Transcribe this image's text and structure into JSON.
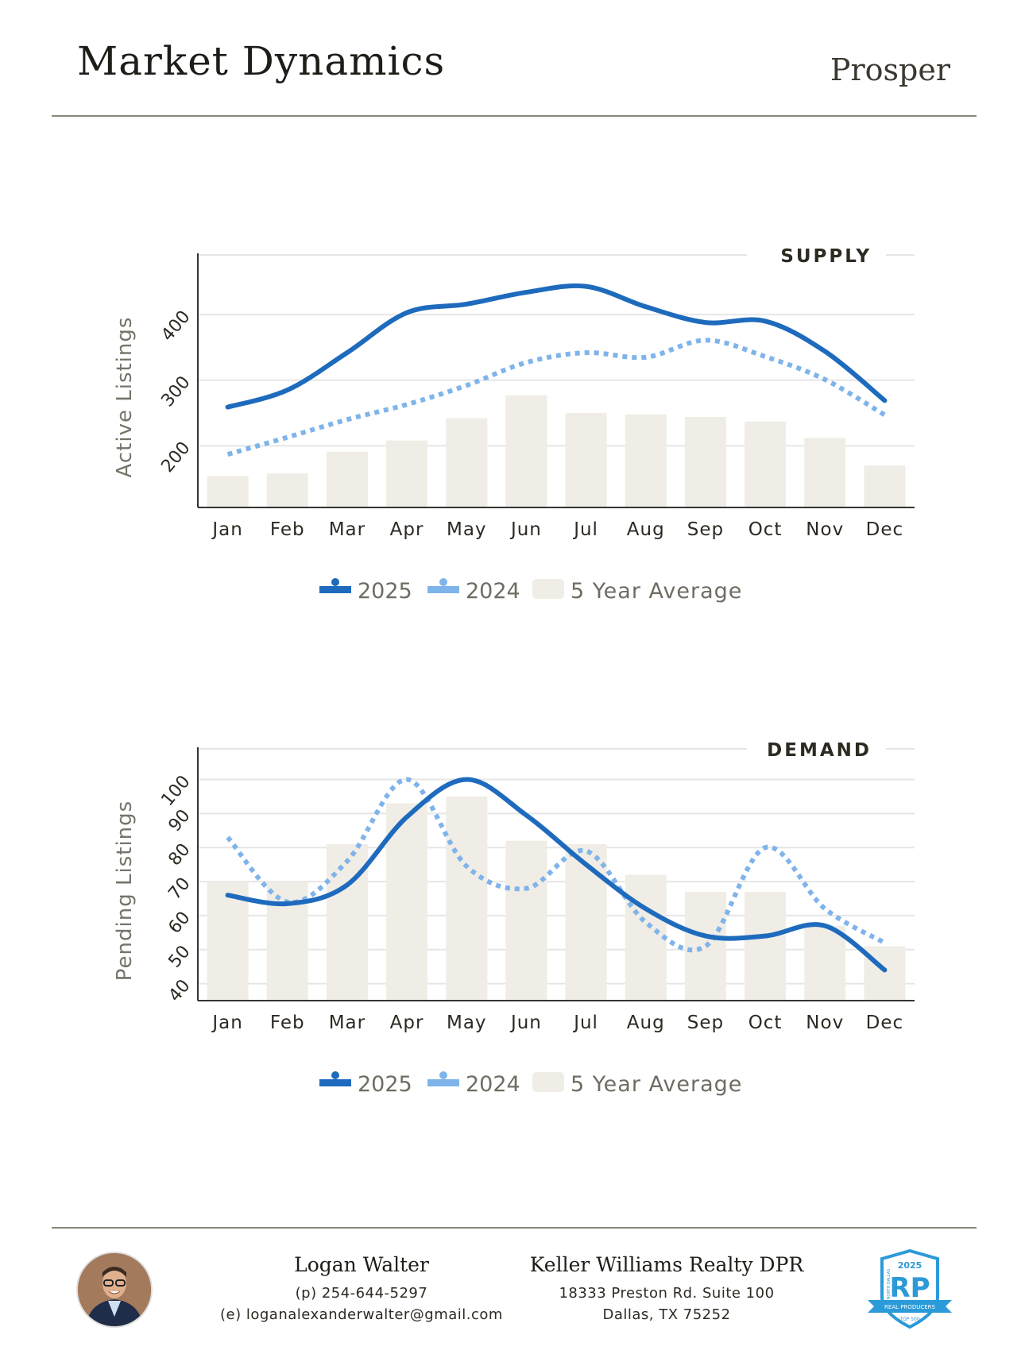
{
  "header": {
    "title": "Market Dynamics",
    "city": "Prosper"
  },
  "chart_data": [
    {
      "type": "bar+line",
      "title": "SUPPLY",
      "ylabel": "Active Listings",
      "categories": [
        "Jan",
        "Feb",
        "Mar",
        "Apr",
        "May",
        "Jun",
        "Jul",
        "Aug",
        "Sep",
        "Oct",
        "Nov",
        "Dec"
      ],
      "yticks": [
        "200",
        "300",
        "400"
      ],
      "ylim": [
        106,
        491
      ],
      "grid": true,
      "legend_placement": "bottom",
      "series": [
        {
          "name": "2025",
          "kind": "line",
          "style": "solid",
          "color": "#1e6bbd",
          "values": [
            259,
            285,
            342,
            403,
            416,
            434,
            443,
            412,
            388,
            390,
            344,
            269
          ]
        },
        {
          "name": "2024",
          "kind": "line",
          "style": "dotted",
          "color": "#7fb4ea",
          "values": [
            187,
            213,
            240,
            263,
            292,
            327,
            342,
            335,
            361,
            336,
            301,
            247
          ]
        },
        {
          "name": "5 Year Average",
          "kind": "bar",
          "color": "#f0ede6",
          "values": [
            154,
            158,
            191,
            208,
            242,
            277,
            250,
            248,
            244,
            237,
            212,
            170
          ]
        }
      ]
    },
    {
      "type": "bar+line",
      "title": "DEMAND",
      "ylabel": "Pending Listings",
      "categories": [
        "Jan",
        "Feb",
        "Mar",
        "Apr",
        "May",
        "Jun",
        "Jul",
        "Aug",
        "Sep",
        "Oct",
        "Nov",
        "Dec"
      ],
      "yticks": [
        "40",
        "50",
        "60",
        "70",
        "80",
        "90",
        "100"
      ],
      "ylim": [
        35,
        109
      ],
      "grid": true,
      "legend_placement": "bottom",
      "series": [
        {
          "name": "2025",
          "kind": "line",
          "style": "solid",
          "color": "#1e6bbd",
          "values": [
            66,
            63.5,
            69,
            89,
            100,
            89.5,
            75,
            62,
            54,
            54,
            57,
            44
          ]
        },
        {
          "name": "2024",
          "kind": "line",
          "style": "dotted",
          "color": "#7fb4ea",
          "values": [
            83,
            64,
            76,
            100,
            74.5,
            68,
            79,
            58,
            51,
            80,
            62,
            52
          ]
        },
        {
          "name": "5 Year Average",
          "kind": "bar",
          "color": "#f0ede6",
          "values": [
            70,
            70,
            81,
            93,
            95,
            82,
            81,
            72,
            67,
            67,
            57,
            51
          ]
        }
      ]
    }
  ],
  "footer": {
    "agent_name": "Logan Walter",
    "phone": "(p) 254-644-5297",
    "email": "(e) loganalexanderwalter@gmail.com",
    "company": "Keller Williams Realty DPR",
    "address1": "18333 Preston Rd. Suite 100",
    "address2": "Dallas, TX 75252",
    "badge": {
      "year": "2025",
      "letters": "RP",
      "banner": "REAL PRODUCERS",
      "sub": "TOP 500",
      "side": "NORTH DALLAS"
    }
  }
}
